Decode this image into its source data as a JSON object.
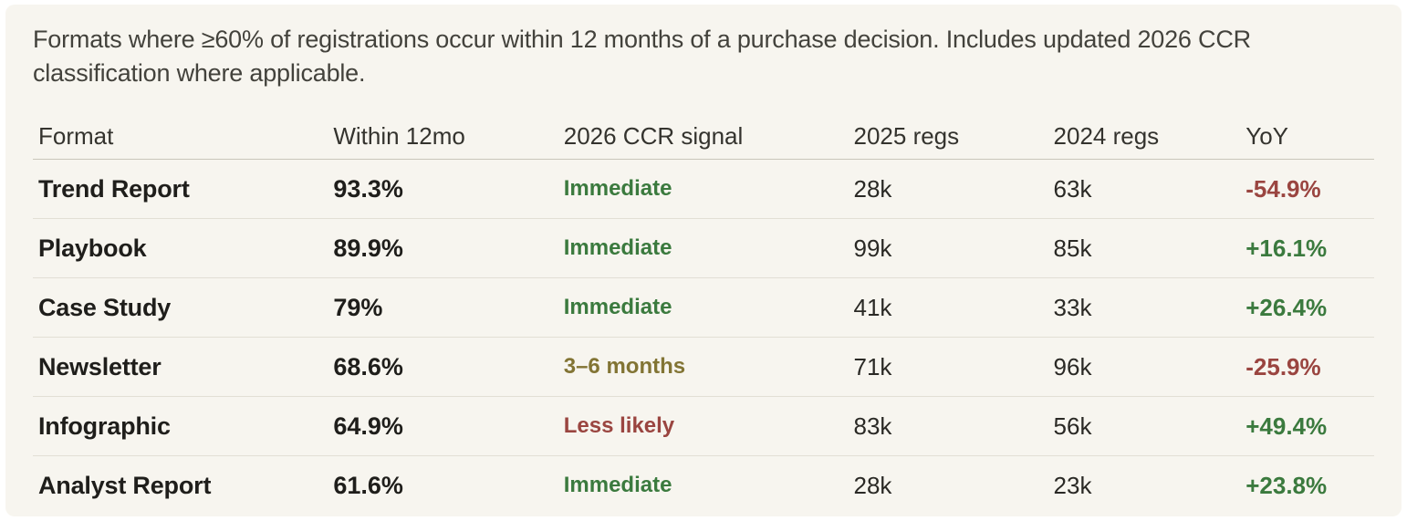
{
  "panel": {
    "description": "Formats where ≥60% of registrations occur within 12 months of a purchase decision. Includes updated 2026 CCR classification where applicable."
  },
  "colors": {
    "background": "#f7f5ef",
    "positive": "#3b7a3e",
    "negative": "#9a4540",
    "warning": "#827434"
  },
  "chart_data": {
    "type": "table",
    "columns": [
      "Format",
      "Within 12mo",
      "2026 CCR signal",
      "2025 regs",
      "2024 regs",
      "YoY"
    ],
    "rows": [
      {
        "format": "Trend Report",
        "within_12mo": "93.3%",
        "signal": "Immediate",
        "signal_tone": "positive",
        "regs_2025": "28k",
        "regs_2024": "63k",
        "yoy": "-54.9%",
        "yoy_tone": "negative"
      },
      {
        "format": "Playbook",
        "within_12mo": "89.9%",
        "signal": "Immediate",
        "signal_tone": "positive",
        "regs_2025": "99k",
        "regs_2024": "85k",
        "yoy": "+16.1%",
        "yoy_tone": "positive"
      },
      {
        "format": "Case Study",
        "within_12mo": "79%",
        "signal": "Immediate",
        "signal_tone": "positive",
        "regs_2025": "41k",
        "regs_2024": "33k",
        "yoy": "+26.4%",
        "yoy_tone": "positive"
      },
      {
        "format": "Newsletter",
        "within_12mo": "68.6%",
        "signal": "3–6 months",
        "signal_tone": "warning",
        "regs_2025": "71k",
        "regs_2024": "96k",
        "yoy": "-25.9%",
        "yoy_tone": "negative"
      },
      {
        "format": "Infographic",
        "within_12mo": "64.9%",
        "signal": "Less likely",
        "signal_tone": "negative",
        "regs_2025": "83k",
        "regs_2024": "56k",
        "yoy": "+49.4%",
        "yoy_tone": "positive"
      },
      {
        "format": "Analyst Report",
        "within_12mo": "61.6%",
        "signal": "Immediate",
        "signal_tone": "positive",
        "regs_2025": "28k",
        "regs_2024": "23k",
        "yoy": "+23.8%",
        "yoy_tone": "positive"
      }
    ]
  }
}
